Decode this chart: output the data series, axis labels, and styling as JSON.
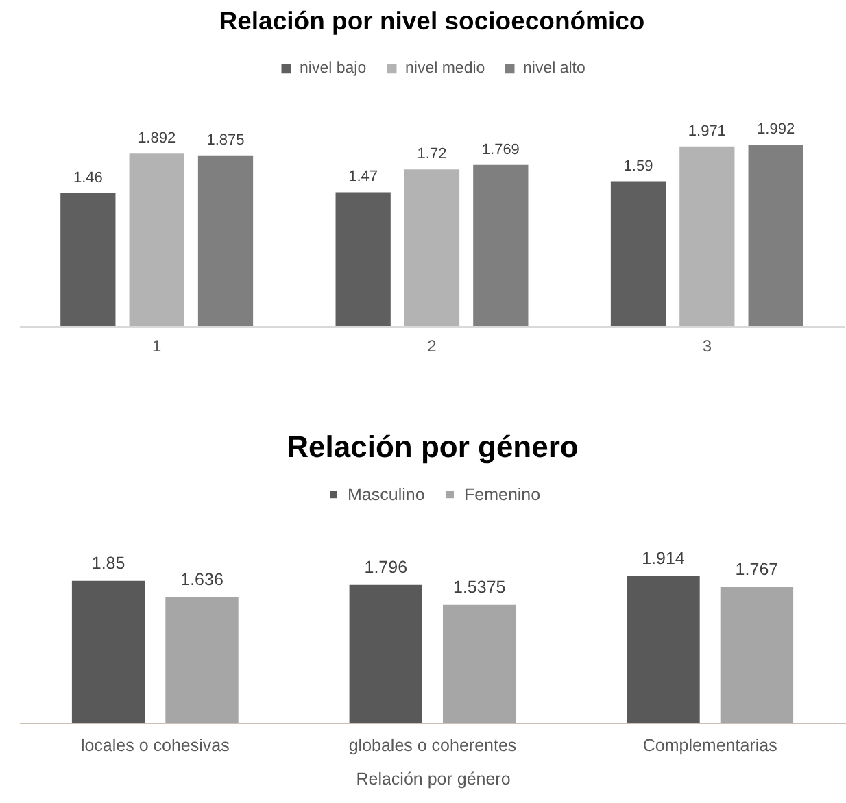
{
  "chart_data": [
    {
      "type": "bar",
      "title": "Relación por nivel socioeconómico",
      "categories": [
        "1",
        "2",
        "3"
      ],
      "series": [
        {
          "name": "nivel bajo",
          "color": "#5f5f5f",
          "values": [
            1.46,
            1.47,
            1.59
          ]
        },
        {
          "name": "nivel medio",
          "color": "#b3b3b3",
          "values": [
            1.892,
            1.72,
            1.971
          ]
        },
        {
          "name": "nivel alto",
          "color": "#7f7f7f",
          "values": [
            1.875,
            1.769,
            1.992
          ]
        }
      ],
      "tick_labels": "x",
      "data_labels": true,
      "legend": "top"
    },
    {
      "type": "bar",
      "title": "Relación por género",
      "xlabel": "Relación por género",
      "categories": [
        "locales o cohesivas",
        "globales o coherentes",
        "Complementarias"
      ],
      "series": [
        {
          "name": "Masculino",
          "color": "#595959",
          "values": [
            1.85,
            1.796,
            1.914
          ]
        },
        {
          "name": "Femenino",
          "color": "#a6a6a6",
          "values": [
            1.636,
            1.5375,
            1.767
          ]
        }
      ],
      "tick_labels": "x",
      "data_labels": true,
      "legend": "top"
    }
  ]
}
